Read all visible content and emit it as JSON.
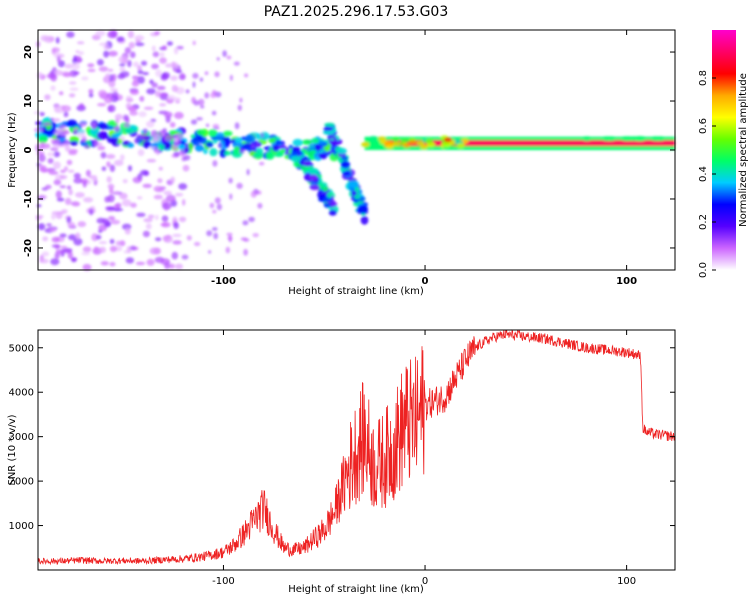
{
  "title": "PAZ1.2025.296.17.53.G03",
  "chart_data": [
    {
      "type": "heatmap",
      "xlabel": "Height of straight line (km)",
      "ylabel": "Frequency (Hz)",
      "xlim": [
        -192,
        124
      ],
      "ylim": [
        -24.5,
        24.5
      ],
      "xticks": [
        -100,
        0,
        100
      ],
      "xtick_labels": [
        "-100",
        "0",
        "100"
      ],
      "yticks": [
        -20,
        -10,
        0,
        10,
        20
      ],
      "ytick_labels": [
        "-20",
        "-10",
        "0",
        "10",
        "20"
      ],
      "colorbar": {
        "label": "Normalized spectral amplitude",
        "range": [
          0,
          1
        ],
        "ticks": [
          0.0,
          0.2,
          0.4,
          0.6,
          0.8
        ],
        "tick_labels": [
          "0.0",
          "0.2",
          "0.4",
          "0.6",
          "0.8"
        ],
        "colormap": [
          "#ffffff",
          "#cc66ff",
          "#5500ff",
          "#0000ff",
          "#00ccff",
          "#00ff66",
          "#66ff00",
          "#ffff00",
          "#ffaa00",
          "#ff0000",
          "#ff0066",
          "#ff00cc"
        ]
      },
      "features": [
        {
          "name": "tone",
          "x_range": [
            -30,
            124
          ],
          "frequency": 1.5,
          "level": 0.9
        },
        {
          "name": "main band",
          "x_range": [
            -192,
            -45
          ],
          "frequency_from": 4,
          "frequency_to": 0,
          "level": 0.35
        },
        {
          "name": "descending branch",
          "x_range": [
            -65,
            -45
          ],
          "frequency_from": 0,
          "frequency_to": -12,
          "level": 0.3
        },
        {
          "name": "second branch",
          "x_range": [
            -48,
            -30
          ],
          "frequency_from": 5,
          "frequency_to": -13,
          "level": 0.3
        },
        {
          "name": "diffuse noise",
          "x_range": [
            -192,
            -120
          ],
          "frequency_range": [
            -24,
            24
          ],
          "level": 0.1
        }
      ]
    },
    {
      "type": "line",
      "xlabel": "Height of straight line (km)",
      "ylabel": "SNR (10 * v/v)",
      "xlim": [
        -192,
        124
      ],
      "ylim": [
        0,
        5400
      ],
      "xticks": [
        -100,
        0,
        100
      ],
      "xtick_labels": [
        "-100",
        "0",
        "100"
      ],
      "yticks": [
        1000,
        2000,
        3000,
        4000,
        5000
      ],
      "ytick_labels": [
        "1000",
        "2000",
        "3000",
        "4000",
        "5000"
      ],
      "series": [
        {
          "name": "SNR",
          "color": "#ee2222",
          "x": [
            -192,
            -180,
            -170,
            -160,
            -150,
            -140,
            -130,
            -120,
            -110,
            -100,
            -95,
            -90,
            -85,
            -80,
            -75,
            -70,
            -65,
            -60,
            -55,
            -50,
            -45,
            -40,
            -35,
            -30,
            -25,
            -20,
            -15,
            -10,
            -5,
            0,
            5,
            10,
            15,
            20,
            25,
            30,
            35,
            40,
            50,
            60,
            70,
            80,
            90,
            100,
            105,
            107,
            108,
            110,
            115,
            124
          ],
          "values": [
            200,
            200,
            220,
            200,
            210,
            200,
            230,
            250,
            300,
            400,
            550,
            800,
            1100,
            1400,
            900,
            500,
            450,
            500,
            700,
            900,
            1300,
            2000,
            2600,
            3000,
            2300,
            2500,
            2800,
            3300,
            3300,
            3700,
            3800,
            3900,
            4300,
            4700,
            5000,
            5150,
            5250,
            5300,
            5250,
            5200,
            5100,
            5000,
            4950,
            4900,
            4850,
            4800,
            3200,
            3100,
            3050,
            3000
          ]
        }
      ]
    }
  ]
}
